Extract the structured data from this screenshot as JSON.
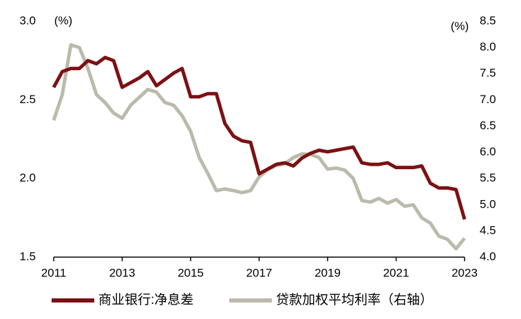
{
  "chart_data": {
    "type": "line",
    "y_label": "(%)",
    "y2_label": "(%)",
    "xlim": [
      2011,
      2023
    ],
    "xticks": [
      2011,
      2013,
      2015,
      2017,
      2019,
      2021,
      2023
    ],
    "ylim": [
      1.5,
      3.0
    ],
    "yticks": [
      1.5,
      {
        "value": 2.0,
        "label": "2.0"
      },
      2.5,
      {
        "value": 3.0,
        "label": "3.0"
      }
    ],
    "y2lim": [
      4.0,
      8.5
    ],
    "y2ticks": [
      {
        "value": 4.0,
        "label": "4.0"
      },
      4.5,
      {
        "value": 5.0,
        "label": "5.0"
      },
      5.5,
      {
        "value": 6.0,
        "label": "6.0"
      },
      6.5,
      {
        "value": 7.0,
        "label": "7.0"
      },
      7.5,
      {
        "value": 8.0,
        "label": "8.0"
      },
      8.5
    ],
    "legend": "bottom",
    "x": [
      2011,
      2011.25,
      2011.5,
      2011.75,
      2012,
      2012.25,
      2012.5,
      2012.75,
      2013,
      2013.25,
      2013.5,
      2013.75,
      2014,
      2014.25,
      2014.5,
      2014.75,
      2015,
      2015.25,
      2015.5,
      2015.75,
      2016,
      2016.25,
      2016.5,
      2016.75,
      2017,
      2017.25,
      2017.5,
      2017.75,
      2018,
      2018.25,
      2018.5,
      2018.75,
      2019,
      2019.25,
      2019.5,
      2019.75,
      2020,
      2020.25,
      2020.5,
      2020.75,
      2021,
      2021.25,
      2021.5,
      2021.75,
      2022,
      2022.25,
      2022.5,
      2022.75,
      2023
    ],
    "series": [
      {
        "name": "商业银行:净息差",
        "color": "#7b1113",
        "values": [
          2.58,
          2.68,
          2.7,
          2.7,
          2.75,
          2.73,
          2.77,
          2.75,
          2.58,
          2.61,
          2.64,
          2.68,
          2.59,
          2.63,
          2.67,
          2.7,
          2.52,
          2.52,
          2.54,
          2.54,
          2.35,
          2.27,
          2.24,
          2.23,
          2.03,
          2.06,
          2.09,
          2.1,
          2.08,
          2.13,
          2.16,
          2.18,
          2.17,
          2.18,
          2.19,
          2.2,
          2.1,
          2.09,
          2.09,
          2.1,
          2.07,
          2.07,
          2.07,
          2.08,
          1.97,
          1.94,
          1.94,
          1.93,
          1.74
        ]
      },
      {
        "name": "贷款加权平均利率（右轴）",
        "color": "#bbbaab",
        "axis": "y2",
        "values": [
          6.61,
          7.1,
          8.05,
          8.0,
          7.6,
          7.1,
          6.95,
          6.75,
          6.65,
          6.9,
          7.05,
          7.2,
          7.15,
          6.95,
          6.9,
          6.7,
          6.4,
          5.9,
          5.6,
          5.27,
          5.3,
          5.27,
          5.23,
          5.27,
          5.53,
          5.67,
          5.75,
          5.78,
          5.9,
          5.97,
          5.96,
          5.9,
          5.68,
          5.7,
          5.66,
          5.5,
          5.08,
          5.05,
          5.12,
          5.03,
          5.1,
          4.97,
          5.0,
          4.75,
          4.65,
          4.4,
          4.34,
          4.16,
          4.36
        ]
      }
    ]
  }
}
